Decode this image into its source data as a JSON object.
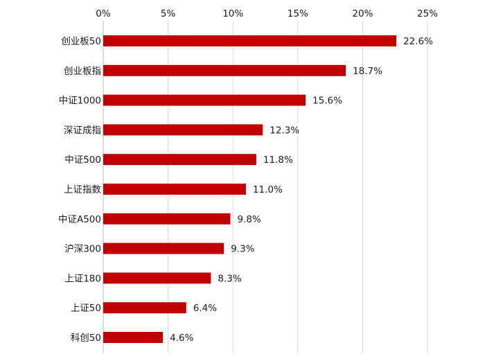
{
  "chart_data": {
    "type": "bar",
    "orientation": "horizontal",
    "title": "",
    "xlabel": "",
    "ylabel": "",
    "categories": [
      "创业板50",
      "创业板指",
      "中证1000",
      "深证成指",
      "中证500",
      "上证指数",
      "中证A500",
      "沪深300",
      "上证180",
      "上证50",
      "科创50"
    ],
    "values": [
      22.6,
      18.7,
      15.6,
      12.3,
      11.8,
      11.0,
      9.8,
      9.3,
      8.3,
      6.4,
      4.6
    ],
    "data_labels": [
      "22.6%",
      "18.7%",
      "15.6%",
      "12.3%",
      "11.8%",
      "11.0%",
      "9.8%",
      "9.3%",
      "8.3%",
      "6.4%",
      "4.6%"
    ],
    "xlim": [
      0,
      25
    ],
    "x_ticks": [
      0,
      5,
      10,
      15,
      20,
      25
    ],
    "x_tick_labels": [
      "0%",
      "5%",
      "10%",
      "15%",
      "20%",
      "25%"
    ],
    "x_axis_position": "top",
    "grid": true,
    "legend": "none",
    "bar_color": "#c00000"
  }
}
